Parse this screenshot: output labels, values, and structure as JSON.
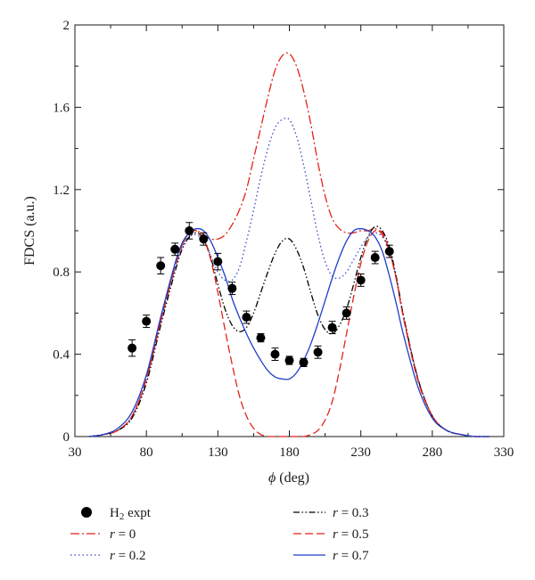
{
  "chart_data": {
    "type": "line",
    "xlabel_symbol": "ϕ",
    "xlabel_unit": "(deg)",
    "ylabel": "FDCS (a.u.)",
    "xlim": [
      30,
      330
    ],
    "ylim": [
      0,
      2
    ],
    "xticks": [
      30,
      80,
      130,
      180,
      230,
      280,
      330
    ],
    "xtick_labels": [
      "30",
      "80",
      "130",
      "180",
      "230",
      "280",
      "330"
    ],
    "yticks": [
      0,
      0.4,
      0.8,
      1.2,
      1.6,
      2
    ],
    "ytick_labels": [
      "0",
      "0.4",
      "0.8",
      "1.2",
      "1.6",
      "2"
    ],
    "grid": false,
    "legend_position": "bottom",
    "experiment": {
      "name_main": "H",
      "name_sub": "2",
      "name_suffix": " expt",
      "color": "#000000",
      "x": [
        70,
        80,
        90,
        100,
        110,
        120,
        130,
        140,
        150,
        160,
        170,
        180,
        190,
        200,
        210,
        220,
        230,
        240,
        250
      ],
      "y": [
        0.43,
        0.56,
        0.83,
        0.91,
        1.0,
        0.96,
        0.85,
        0.72,
        0.58,
        0.48,
        0.4,
        0.37,
        0.36,
        0.41,
        0.53,
        0.6,
        0.76,
        0.87,
        0.9
      ],
      "err": [
        0.04,
        0.03,
        0.04,
        0.03,
        0.04,
        0.03,
        0.04,
        0.03,
        0.03,
        0.02,
        0.03,
        0.02,
        0.02,
        0.03,
        0.03,
        0.03,
        0.03,
        0.03,
        0.03
      ]
    },
    "series": [
      {
        "name": "0",
        "color": "#e2231a",
        "dash": "10,3,2,3",
        "x": [
          40,
          50,
          60,
          70,
          80,
          90,
          100,
          105,
          110,
          115,
          120,
          125,
          130,
          135,
          140,
          145,
          150,
          155,
          160,
          165,
          170,
          175,
          180,
          185,
          190,
          195,
          200,
          205,
          210,
          215,
          220,
          225,
          230,
          235,
          240,
          245,
          250,
          255,
          260,
          270,
          280,
          290,
          300,
          310,
          320
        ],
        "y": [
          0,
          0.01,
          0.03,
          0.1,
          0.28,
          0.56,
          0.82,
          0.93,
          0.99,
          1.0,
          0.98,
          0.96,
          0.96,
          0.98,
          1.03,
          1.1,
          1.2,
          1.35,
          1.5,
          1.65,
          1.78,
          1.85,
          1.86,
          1.8,
          1.68,
          1.52,
          1.33,
          1.17,
          1.06,
          1.01,
          0.99,
          0.99,
          1.0,
          1.0,
          1.01,
          0.98,
          0.9,
          0.76,
          0.58,
          0.28,
          0.1,
          0.03,
          0.01,
          0,
          0
        ]
      },
      {
        "name": "0.2",
        "color": "#3348c8",
        "dash": "1.5,3",
        "x": [
          40,
          50,
          60,
          70,
          80,
          90,
          100,
          105,
          110,
          115,
          120,
          125,
          130,
          135,
          140,
          145,
          150,
          155,
          160,
          165,
          170,
          175,
          180,
          185,
          190,
          195,
          200,
          205,
          210,
          215,
          220,
          225,
          230,
          235,
          240,
          245,
          250,
          255,
          260,
          270,
          280,
          290,
          300,
          310,
          320
        ],
        "y": [
          0,
          0.01,
          0.03,
          0.1,
          0.28,
          0.56,
          0.82,
          0.92,
          0.97,
          0.98,
          0.95,
          0.88,
          0.8,
          0.76,
          0.76,
          0.82,
          0.95,
          1.1,
          1.26,
          1.4,
          1.5,
          1.54,
          1.54,
          1.46,
          1.32,
          1.15,
          0.98,
          0.85,
          0.78,
          0.77,
          0.8,
          0.86,
          0.92,
          0.97,
          0.99,
          0.97,
          0.9,
          0.76,
          0.58,
          0.28,
          0.1,
          0.03,
          0.01,
          0,
          0
        ]
      },
      {
        "name": "0.3",
        "color": "#000000",
        "dash": "7,2.5,1.5,2.5,1.5,2.5",
        "x": [
          40,
          50,
          60,
          70,
          80,
          90,
          100,
          105,
          110,
          115,
          120,
          125,
          130,
          135,
          140,
          145,
          150,
          155,
          160,
          165,
          170,
          175,
          180,
          185,
          190,
          195,
          200,
          205,
          210,
          215,
          220,
          225,
          230,
          235,
          240,
          245,
          250,
          255,
          260,
          270,
          280,
          290,
          300,
          310,
          320
        ],
        "y": [
          0,
          0.01,
          0.03,
          0.09,
          0.26,
          0.54,
          0.8,
          0.91,
          0.97,
          0.99,
          0.96,
          0.87,
          0.74,
          0.62,
          0.54,
          0.51,
          0.53,
          0.6,
          0.7,
          0.8,
          0.89,
          0.95,
          0.96,
          0.91,
          0.82,
          0.7,
          0.59,
          0.52,
          0.5,
          0.54,
          0.62,
          0.74,
          0.87,
          0.97,
          1.02,
          1.0,
          0.92,
          0.77,
          0.58,
          0.28,
          0.1,
          0.03,
          0.01,
          0,
          0
        ]
      },
      {
        "name": "0.5",
        "color": "#e2231a",
        "dash": "9,4",
        "x": [
          40,
          50,
          60,
          70,
          80,
          90,
          100,
          105,
          110,
          115,
          120,
          125,
          130,
          135,
          140,
          145,
          150,
          155,
          160,
          165,
          170,
          175,
          180,
          185,
          190,
          195,
          200,
          205,
          210,
          215,
          220,
          225,
          230,
          235,
          240,
          245,
          250,
          255,
          260,
          270,
          280,
          290,
          300,
          310,
          320
        ],
        "y": [
          0,
          0.01,
          0.03,
          0.1,
          0.28,
          0.56,
          0.83,
          0.93,
          0.99,
          1.0,
          0.96,
          0.86,
          0.7,
          0.52,
          0.35,
          0.2,
          0.1,
          0.04,
          0.01,
          0,
          0,
          0,
          0,
          0,
          0,
          0.01,
          0.03,
          0.08,
          0.17,
          0.32,
          0.5,
          0.68,
          0.84,
          0.95,
          1.0,
          0.99,
          0.9,
          0.76,
          0.57,
          0.27,
          0.1,
          0.03,
          0.01,
          0,
          0
        ]
      },
      {
        "name": "0.7",
        "color": "#1f3fc8",
        "dash": "",
        "x": [
          40,
          50,
          60,
          70,
          80,
          90,
          100,
          105,
          110,
          115,
          120,
          125,
          130,
          135,
          140,
          145,
          150,
          155,
          160,
          165,
          170,
          175,
          180,
          185,
          190,
          195,
          200,
          205,
          210,
          215,
          220,
          225,
          230,
          235,
          240,
          245,
          250,
          255,
          260,
          270,
          280,
          290,
          300,
          310,
          320
        ],
        "y": [
          0,
          0.01,
          0.04,
          0.12,
          0.3,
          0.58,
          0.84,
          0.94,
          0.99,
          1.01,
          1.0,
          0.95,
          0.87,
          0.78,
          0.67,
          0.58,
          0.5,
          0.43,
          0.37,
          0.32,
          0.29,
          0.28,
          0.28,
          0.31,
          0.37,
          0.45,
          0.55,
          0.66,
          0.77,
          0.87,
          0.95,
          1.0,
          1.01,
          1.0,
          0.97,
          0.9,
          0.78,
          0.64,
          0.49,
          0.24,
          0.09,
          0.03,
          0.01,
          0,
          0
        ]
      }
    ]
  },
  "legend": {
    "var": "r",
    "eq": " = "
  }
}
